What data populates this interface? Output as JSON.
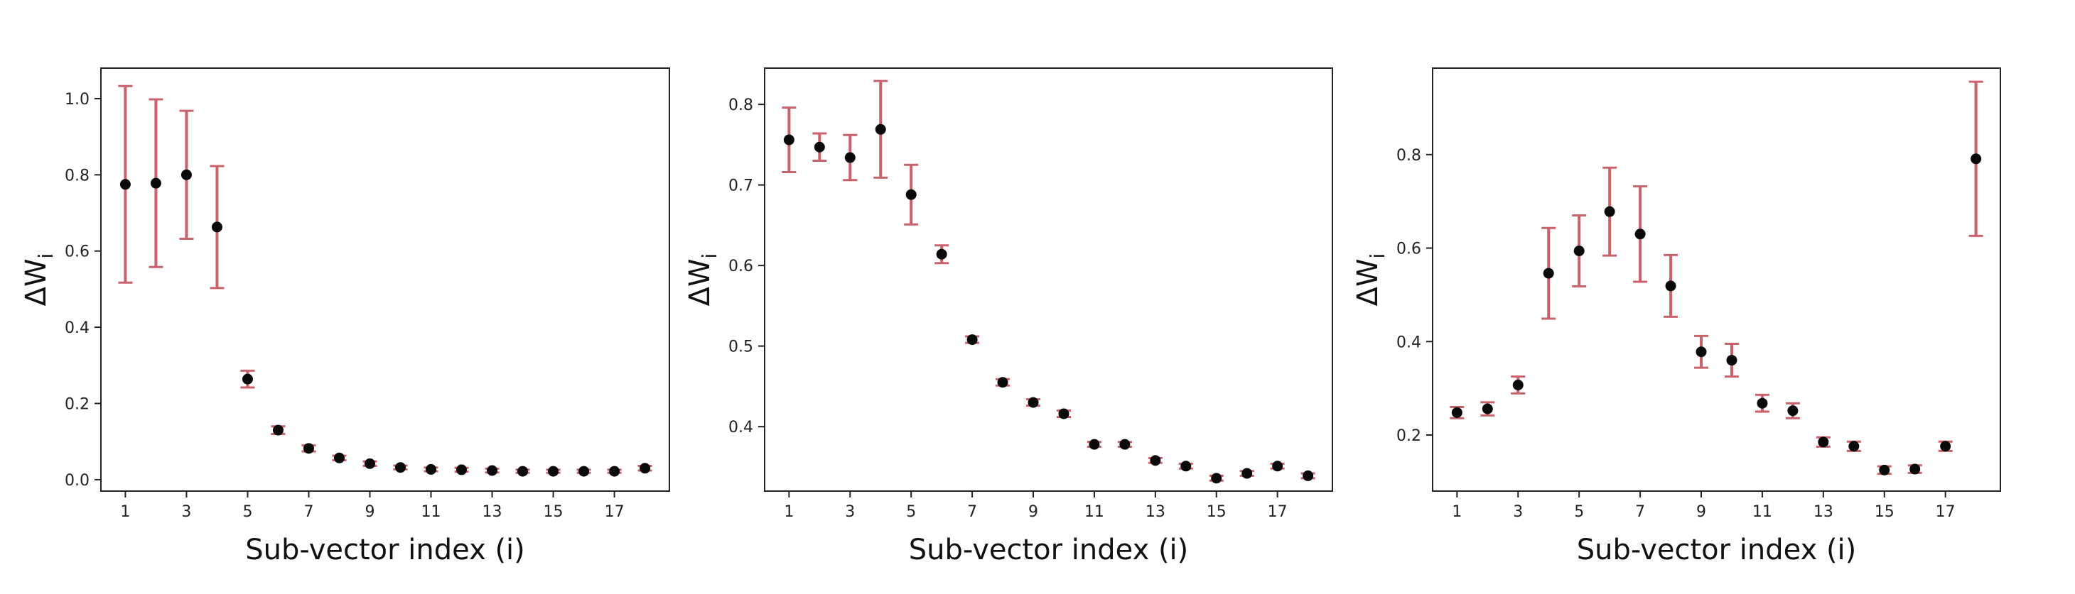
{
  "colors": {
    "errorbar": "#c8626b",
    "marker": "#0a0a0a",
    "axis": "#222222"
  },
  "chart_data": [
    {
      "type": "scatter",
      "xlabel": "Sub-vector index (i)",
      "ylabel_main": "ΔW",
      "ylabel_sub": "i",
      "x": [
        1,
        2,
        3,
        4,
        5,
        6,
        7,
        8,
        9,
        10,
        11,
        12,
        13,
        14,
        15,
        16,
        17,
        18
      ],
      "xticks": [
        1,
        3,
        5,
        7,
        9,
        11,
        13,
        15,
        17
      ],
      "xlim": [
        0.2,
        18.8
      ],
      "yticks": [
        0.0,
        0.2,
        0.4,
        0.6,
        0.8,
        1.0
      ],
      "ytick_labels": [
        "0.0",
        "0.2",
        "0.4",
        "0.6",
        "0.8",
        "1.0"
      ],
      "ylim": [
        -0.03,
        1.08
      ],
      "y": [
        0.775,
        0.778,
        0.8,
        0.663,
        0.264,
        0.13,
        0.082,
        0.057,
        0.042,
        0.032,
        0.027,
        0.026,
        0.024,
        0.022,
        0.022,
        0.022,
        0.022,
        0.03
      ],
      "yerr": [
        0.258,
        0.22,
        0.168,
        0.16,
        0.022,
        0.01,
        0.008,
        0.006,
        0.006,
        0.005,
        0.005,
        0.005,
        0.005,
        0.004,
        0.004,
        0.004,
        0.004,
        0.006
      ]
    },
    {
      "type": "scatter",
      "xlabel": "Sub-vector index (i)",
      "ylabel_main": "ΔW",
      "ylabel_sub": "i",
      "x": [
        1,
        2,
        3,
        4,
        5,
        6,
        7,
        8,
        9,
        10,
        11,
        12,
        13,
        14,
        15,
        16,
        17,
        18
      ],
      "xticks": [
        1,
        3,
        5,
        7,
        9,
        11,
        13,
        15,
        17
      ],
      "xlim": [
        0.2,
        18.8
      ],
      "yticks": [
        0.4,
        0.5,
        0.6,
        0.7,
        0.8
      ],
      "ytick_labels": [
        "0.4",
        "0.5",
        "0.6",
        "0.7",
        "0.8"
      ],
      "ylim": [
        0.32,
        0.845
      ],
      "y": [
        0.756,
        0.747,
        0.734,
        0.769,
        0.688,
        0.614,
        0.508,
        0.455,
        0.43,
        0.416,
        0.378,
        0.378,
        0.358,
        0.351,
        0.336,
        0.342,
        0.351,
        0.339
      ],
      "yerr": [
        0.04,
        0.017,
        0.028,
        0.06,
        0.037,
        0.011,
        0.004,
        0.004,
        0.004,
        0.004,
        0.003,
        0.003,
        0.003,
        0.003,
        0.003,
        0.003,
        0.003,
        0.003
      ]
    },
    {
      "type": "scatter",
      "xlabel": "Sub-vector index (i)",
      "ylabel_main": "ΔW",
      "ylabel_sub": "i",
      "x": [
        1,
        2,
        3,
        4,
        5,
        6,
        7,
        8,
        9,
        10,
        11,
        12,
        13,
        14,
        15,
        16,
        17,
        18
      ],
      "xticks": [
        1,
        3,
        5,
        7,
        9,
        11,
        13,
        15,
        17
      ],
      "xlim": [
        0.2,
        18.8
      ],
      "yticks": [
        0.2,
        0.4,
        0.6,
        0.8
      ],
      "ytick_labels": [
        "0.2",
        "0.4",
        "0.6",
        "0.8"
      ],
      "ylim": [
        0.08,
        0.985
      ],
      "y": [
        0.248,
        0.256,
        0.307,
        0.546,
        0.594,
        0.678,
        0.63,
        0.519,
        0.378,
        0.36,
        0.268,
        0.252,
        0.185,
        0.176,
        0.125,
        0.127,
        0.176,
        0.791
      ],
      "yerr": [
        0.012,
        0.014,
        0.018,
        0.097,
        0.076,
        0.094,
        0.102,
        0.066,
        0.034,
        0.035,
        0.018,
        0.016,
        0.01,
        0.01,
        0.008,
        0.008,
        0.01,
        0.165
      ]
    }
  ]
}
